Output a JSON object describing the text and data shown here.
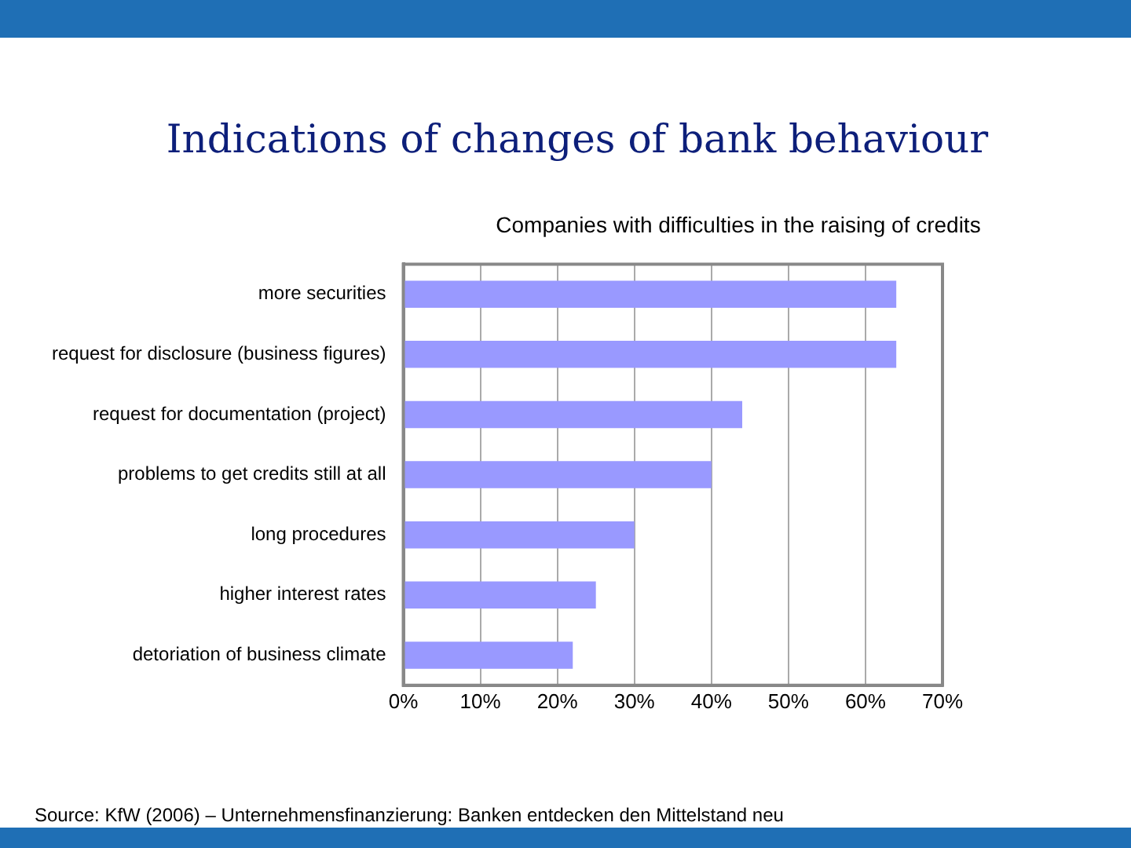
{
  "chart_data": {
    "type": "bar",
    "orientation": "horizontal",
    "title": "Indications of changes of bank behaviour",
    "subtitle": "Companies with difficulties in the raising of credits",
    "categories": [
      "more securities",
      "request for disclosure (business figures)",
      "request for documentation (project)",
      "problems to get credits still at all",
      "long procedures",
      "higher interest rates",
      "detoriation of business climate"
    ],
    "values": [
      64,
      64,
      44,
      40,
      30,
      25,
      22
    ],
    "color": "#9999ff",
    "xlim": [
      0,
      70
    ],
    "xticks": [
      {
        "value": 0,
        "label": "0%"
      },
      {
        "value": 10,
        "label": "10%"
      },
      {
        "value": 20,
        "label": "20%"
      },
      {
        "value": 30,
        "label": "30%"
      },
      {
        "value": 40,
        "label": "40%"
      },
      {
        "value": 50,
        "label": "50%"
      },
      {
        "value": 60,
        "label": "60%"
      },
      {
        "value": 70,
        "label": "70%"
      }
    ],
    "grid": "x",
    "annotations": [
      "Source: KfW (2006) – Unternehmensfinanzierung: Banken entdecken den Mittelstand neu"
    ]
  }
}
